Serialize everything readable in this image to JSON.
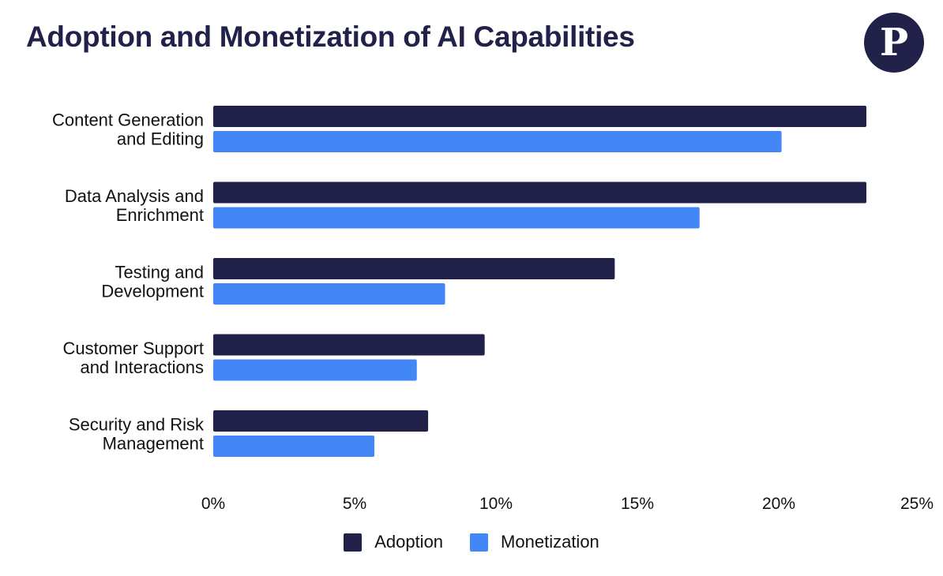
{
  "title": "Adoption and Monetization of AI Capabilities",
  "logo": {
    "letter": "P",
    "icon": "logo-p-circle"
  },
  "colors": {
    "adoption": "#22214a",
    "monetization": "#4386f5",
    "title": "#22214a"
  },
  "chart_data": {
    "type": "bar",
    "orientation": "horizontal",
    "title": "Adoption and Monetization of AI Capabilities",
    "categories": [
      [
        "Content Generation",
        "and Editing"
      ],
      [
        "Data Analysis and",
        "Enrichment"
      ],
      [
        "Testing and",
        "Development"
      ],
      [
        "Customer Support",
        "and Interactions"
      ],
      [
        "Security and Risk",
        "Management"
      ]
    ],
    "series": [
      {
        "name": "Adoption",
        "values": [
          23.1,
          23.1,
          14.2,
          9.6,
          7.6
        ]
      },
      {
        "name": "Monetization",
        "values": [
          20.1,
          17.2,
          8.2,
          7.2,
          5.7
        ]
      }
    ],
    "xlim": [
      0,
      25
    ],
    "xticks": [
      "0%",
      "5%",
      "10%",
      "15%",
      "20%",
      "25%"
    ],
    "xlabel": "",
    "ylabel": "",
    "grid": false,
    "legend": "bottom"
  },
  "legend": {
    "items": [
      {
        "label": "Adoption"
      },
      {
        "label": "Monetization"
      }
    ]
  }
}
